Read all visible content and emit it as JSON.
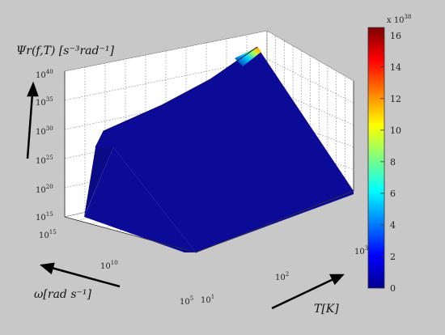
{
  "chart_data": {
    "type": "surface3d",
    "z_title": "Ψr(f,T) [s⁻³rad⁻¹]",
    "z_ticks": [
      "10",
      "10",
      "10",
      "10",
      "10",
      "10"
    ],
    "z_ticks_exp": [
      "15",
      "20",
      "25",
      "30",
      "35",
      "40"
    ],
    "z_range": [
      1000000000000000.0,
      1e+40
    ],
    "omega_label": "ω[rad s⁻¹]",
    "omega_ticks": [
      "10",
      "10",
      "10"
    ],
    "omega_ticks_exp": [
      "5",
      "10",
      "15"
    ],
    "omega_range": [
      100000.0,
      1000000000000000.0
    ],
    "t_label": "T[K]",
    "t_ticks": [
      "10",
      "10",
      "10"
    ],
    "t_ticks_exp": [
      "1",
      "2",
      "3"
    ],
    "t_range": [
      10,
      1000
    ],
    "scale": "log",
    "colorbar": {
      "multiplier": "x 10",
      "multiplier_exp": "38",
      "ticks": [
        0,
        2,
        4,
        6,
        8,
        10,
        12,
        14,
        16
      ],
      "range": [
        0,
        16.5
      ],
      "colormap": "jet"
    },
    "grid": true
  },
  "colors": {
    "background": "#c8c8c8",
    "surface": "#0b0b98",
    "surface_dark": "#060670",
    "axis": "#3a3a3a"
  }
}
